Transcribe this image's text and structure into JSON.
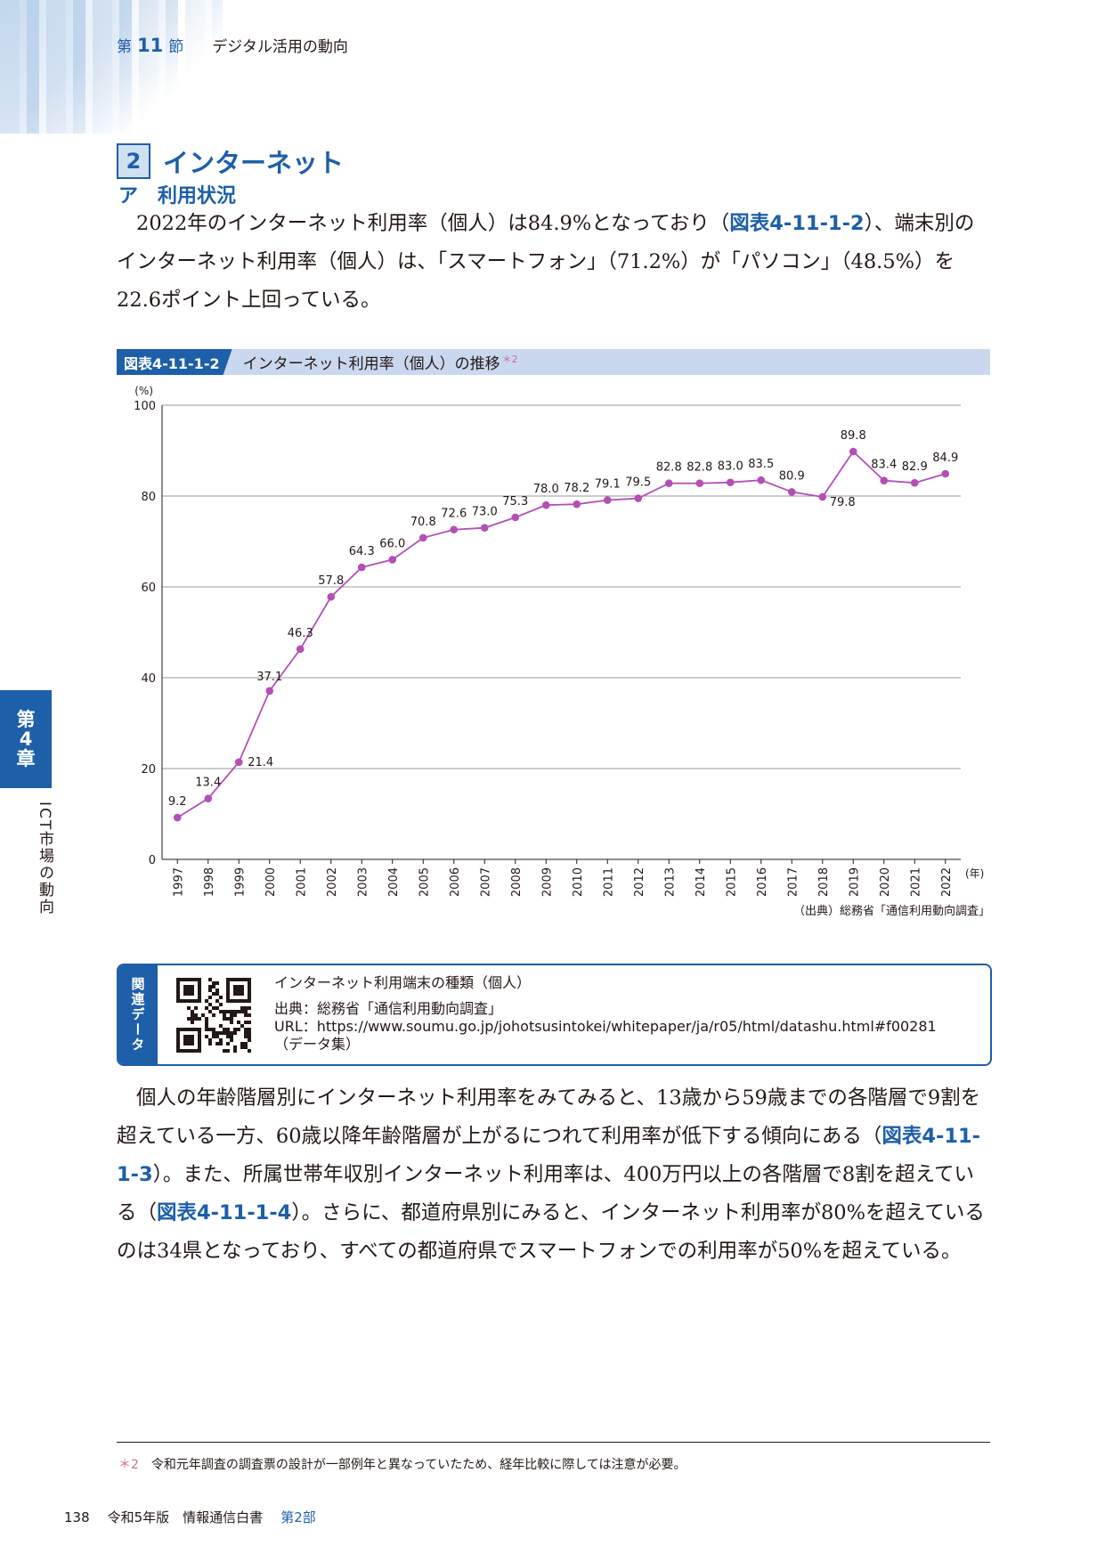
{
  "header": {
    "prefix": "第",
    "num": "11",
    "suffix": "節",
    "title": "デジタル活用の動向"
  },
  "section": {
    "num": "2",
    "title": "インターネット"
  },
  "subsection": {
    "title": "ア　利用状況"
  },
  "para1": {
    "t1": "2022年のインターネット利用率（個人）は84.9%となっており（",
    "ref1": "図表4-11-1-2",
    "t2": "）、端末別のインターネット利用率（個人）は、「スマートフォン」（71.2%）が「パソコン」（48.5%）を22.6ポイント上回っている。"
  },
  "figure": {
    "label": "図表4-11-1-2",
    "title": "インターネット利用率（個人）の推移",
    "note_mark": "＊2",
    "source": "（出典）総務省「通信利用動向調査」"
  },
  "chart_data": {
    "type": "line",
    "ylabel": "(%)",
    "xlabel": "(年)",
    "ylim": [
      0,
      100
    ],
    "yticks": [
      0,
      20,
      40,
      60,
      80,
      100
    ],
    "grid": true,
    "categories": [
      "1997",
      "1998",
      "1999",
      "2000",
      "2001",
      "2002",
      "2003",
      "2004",
      "2005",
      "2006",
      "2007",
      "2008",
      "2009",
      "2010",
      "2011",
      "2012",
      "2013",
      "2014",
      "2015",
      "2016",
      "2017",
      "2018",
      "2019",
      "2020",
      "2021",
      "2022"
    ],
    "values": [
      9.2,
      13.4,
      21.4,
      37.1,
      46.3,
      57.8,
      64.3,
      66.0,
      70.8,
      72.6,
      73.0,
      75.3,
      78.0,
      78.2,
      79.1,
      79.5,
      82.8,
      82.8,
      83.0,
      83.5,
      80.9,
      79.8,
      89.8,
      83.4,
      82.9,
      84.9
    ],
    "labels": [
      "9.2",
      "13.4",
      "21.4",
      "37.1",
      "46.3",
      "57.8",
      "64.3",
      "66.0",
      "70.8",
      "72.6",
      "73.0",
      "75.3",
      "78.0",
      "78.2",
      "79.1",
      "79.5",
      "82.8",
      "82.8",
      "83.0",
      "83.5",
      "80.9",
      "79.8",
      "89.8",
      "83.4",
      "82.9",
      "84.9"
    ],
    "color": "#b44fb6"
  },
  "related": {
    "tab": "関連データ",
    "title": "インターネット利用端末の種類（個人）",
    "source": "出典：総務省「通信利用動向調査」",
    "url": "URL：https://www.soumu.go.jp/johotsusintokei/whitepaper/ja/r05/html/datashu.html#f00281",
    "note": "（データ集）"
  },
  "para2": {
    "t1": "個人の年齢階層別にインターネット利用率をみてみると、13歳から59歳までの各階層で9割を超えている一方、60歳以降年齢階層が上がるにつれて利用率が低下する傾向にある（",
    "ref1": "図表4-11-1-3",
    "t2": "）。また、所属世帯年収別インターネット利用率は、400万円以上の各階層で8割を超えている（",
    "ref2": "図表4-11-1-4",
    "t3": "）。さらに、都道府県別にみると、インターネット利用率が80%を超えているのは34県となっており、すべての都道府県でスマートフォンでの利用率が50%を超えている。"
  },
  "side": {
    "tab_l1": "第",
    "tab_l2": "4",
    "tab_l3": "章",
    "text": "ICT市場の動向"
  },
  "footnote": {
    "mark": "＊2",
    "text": "令和元年調査の調査票の設計が一部例年と異なっていたため、経年比較に際しては注意が必要。"
  },
  "footer": {
    "page": "138",
    "book": "令和5年版　情報通信白書",
    "part": "第2部"
  },
  "colors": {
    "accent": "#1d5fa8",
    "line": "#b44fb6",
    "figbar": "#c9d8ee"
  }
}
